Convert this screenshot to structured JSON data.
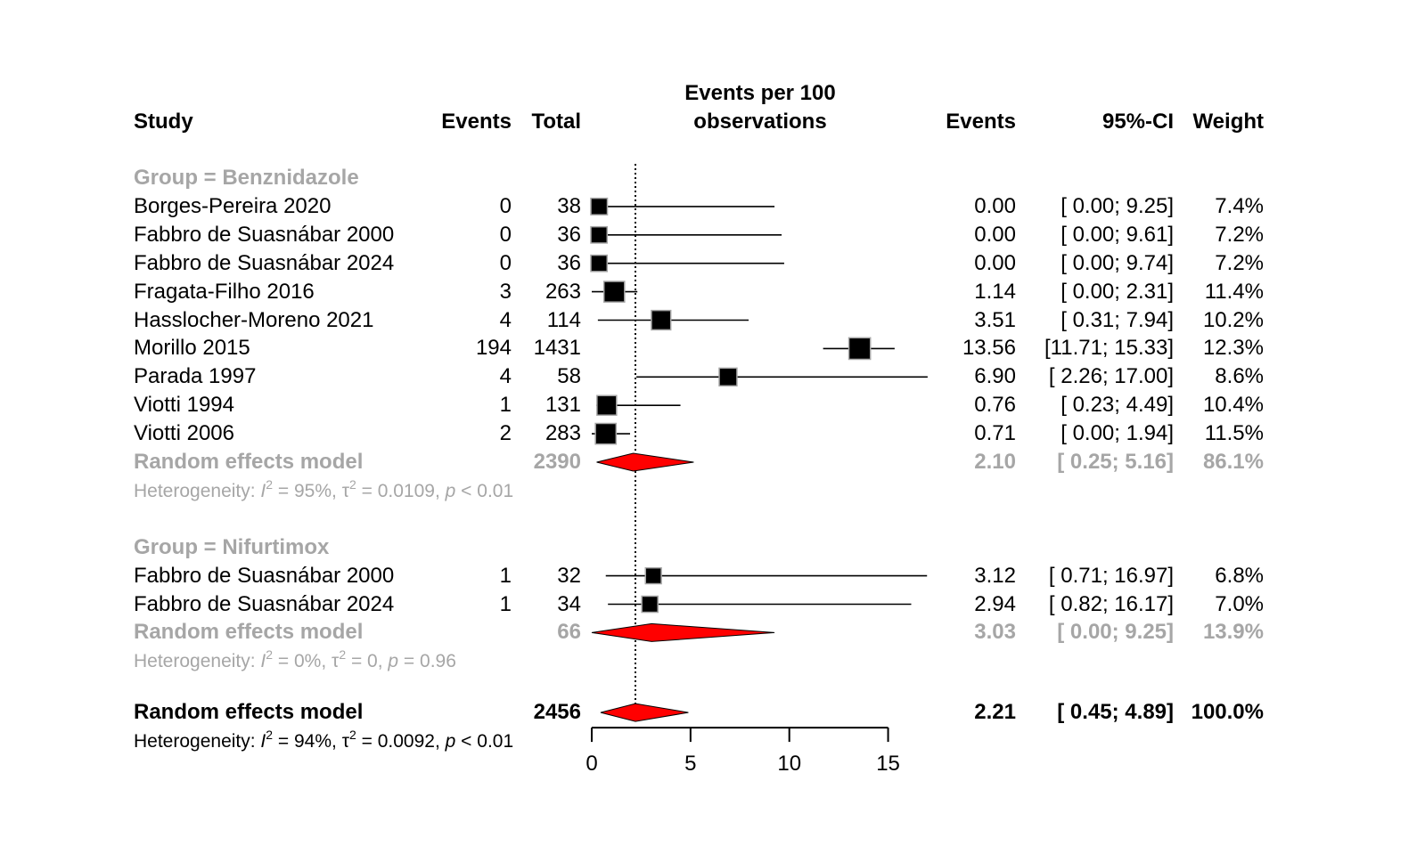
{
  "chart_data": {
    "type": "forest",
    "title": "",
    "xlabel": "Events per 100 observations",
    "xlim": [
      0,
      17
    ],
    "xticks": [
      0,
      5,
      10,
      15
    ],
    "reference_line": 2.21,
    "headers": {
      "study": "Study",
      "events": "Events",
      "total": "Total",
      "plot_line1": "Events per 100",
      "plot_line2": "observations",
      "effect": "Events",
      "ci": "95%-CI",
      "weight": "Weight"
    },
    "groups": [
      {
        "label": "Group = Benznidazole",
        "studies": [
          {
            "study": "Borges-Pereira 2020",
            "events": "0",
            "total": "38",
            "est": 0.0,
            "lo": 0.0,
            "hi": 9.25,
            "est_text": "0.00",
            "ci_text": "[ 0.00;  9.25]",
            "weight_text": "7.4%",
            "weight": 7.4
          },
          {
            "study": "Fabbro de Suasnábar 2000",
            "events": "0",
            "total": "36",
            "est": 0.0,
            "lo": 0.0,
            "hi": 9.61,
            "est_text": "0.00",
            "ci_text": "[ 0.00;  9.61]",
            "weight_text": "7.2%",
            "weight": 7.2
          },
          {
            "study": "Fabbro de Suasnábar 2024",
            "events": "0",
            "total": "36",
            "est": 0.0,
            "lo": 0.0,
            "hi": 9.74,
            "est_text": "0.00",
            "ci_text": "[ 0.00;  9.74]",
            "weight_text": "7.2%",
            "weight": 7.2
          },
          {
            "study": "Fragata-Filho 2016",
            "events": "3",
            "total": "263",
            "est": 1.14,
            "lo": 0.0,
            "hi": 2.31,
            "est_text": "1.14",
            "ci_text": "[ 0.00;  2.31]",
            "weight_text": "11.4%",
            "weight": 11.4
          },
          {
            "study": "Hasslocher-Moreno 2021",
            "events": "4",
            "total": "114",
            "est": 3.51,
            "lo": 0.31,
            "hi": 7.94,
            "est_text": "3.51",
            "ci_text": "[ 0.31;  7.94]",
            "weight_text": "10.2%",
            "weight": 10.2
          },
          {
            "study": "Morillo 2015",
            "events": "194",
            "total": "1431",
            "est": 13.56,
            "lo": 11.71,
            "hi": 15.33,
            "est_text": "13.56",
            "ci_text": "[11.71; 15.33]",
            "weight_text": "12.3%",
            "weight": 12.3
          },
          {
            "study": "Parada 1997",
            "events": "4",
            "total": "58",
            "est": 6.9,
            "lo": 2.26,
            "hi": 17.0,
            "est_text": "6.90",
            "ci_text": "[ 2.26; 17.00]",
            "weight_text": "8.6%",
            "weight": 8.6
          },
          {
            "study": "Viotti 1994",
            "events": "1",
            "total": "131",
            "est": 0.76,
            "lo": 0.23,
            "hi": 4.49,
            "est_text": "0.76",
            "ci_text": "[ 0.23;  4.49]",
            "weight_text": "10.4%",
            "weight": 10.4
          },
          {
            "study": "Viotti 2006",
            "events": "2",
            "total": "283",
            "est": 0.71,
            "lo": 0.0,
            "hi": 1.94,
            "est_text": "0.71",
            "ci_text": "[ 0.00;  1.94]",
            "weight_text": "11.5%",
            "weight": 11.5
          }
        ],
        "model": {
          "label": "Random effects model",
          "total": "2390",
          "est": 2.1,
          "lo": 0.25,
          "hi": 5.16,
          "est_text": "2.10",
          "ci_text": "[ 0.25;  5.16]",
          "weight_text": "86.1%"
        },
        "heterogeneity": {
          "prefix": "Heterogeneity: ",
          "I": "I",
          "i2_val": " = 95%, ",
          "tau": "τ",
          "tau2_val": " = 0.0109, ",
          "p": "p",
          "p_val": " < 0.01"
        }
      },
      {
        "label": "Group = Nifurtimox",
        "studies": [
          {
            "study": "Fabbro de Suasnábar 2000",
            "events": "1",
            "total": "32",
            "est": 3.12,
            "lo": 0.71,
            "hi": 16.97,
            "est_text": "3.12",
            "ci_text": "[ 0.71; 16.97]",
            "weight_text": "6.8%",
            "weight": 6.8
          },
          {
            "study": "Fabbro de Suasnábar 2024",
            "events": "1",
            "total": "34",
            "est": 2.94,
            "lo": 0.82,
            "hi": 16.17,
            "est_text": "2.94",
            "ci_text": "[ 0.82; 16.17]",
            "weight_text": "7.0%",
            "weight": 7.0
          }
        ],
        "model": {
          "label": "Random effects model",
          "total": "66",
          "est": 3.03,
          "lo": 0.0,
          "hi": 9.25,
          "est_text": "3.03",
          "ci_text": "[ 0.00;  9.25]",
          "weight_text": "13.9%"
        },
        "heterogeneity": {
          "prefix": "Heterogeneity: ",
          "I": "I",
          "i2_val": " = 0%, ",
          "tau": "τ",
          "tau2_val": " = 0, ",
          "p": "p",
          "p_val": " = 0.96"
        }
      }
    ],
    "overall": {
      "label": "Random effects model",
      "total": "2456",
      "est": 2.21,
      "lo": 0.45,
      "hi": 4.89,
      "est_text": "2.21",
      "ci_text": "[ 0.45;  4.89]",
      "weight_text": "100.0%",
      "heterogeneity": {
        "prefix": "Heterogeneity: ",
        "I": "I",
        "i2_val": " = 94%, ",
        "tau": "τ",
        "tau2_val": " = 0.0092, ",
        "p": "p",
        "p_val": " < 0.01"
      }
    },
    "colors": {
      "diamond": "#ff0000",
      "square": "#000000",
      "muted_text": "#a6a6a6",
      "square_border": "#a6a6a6"
    }
  }
}
